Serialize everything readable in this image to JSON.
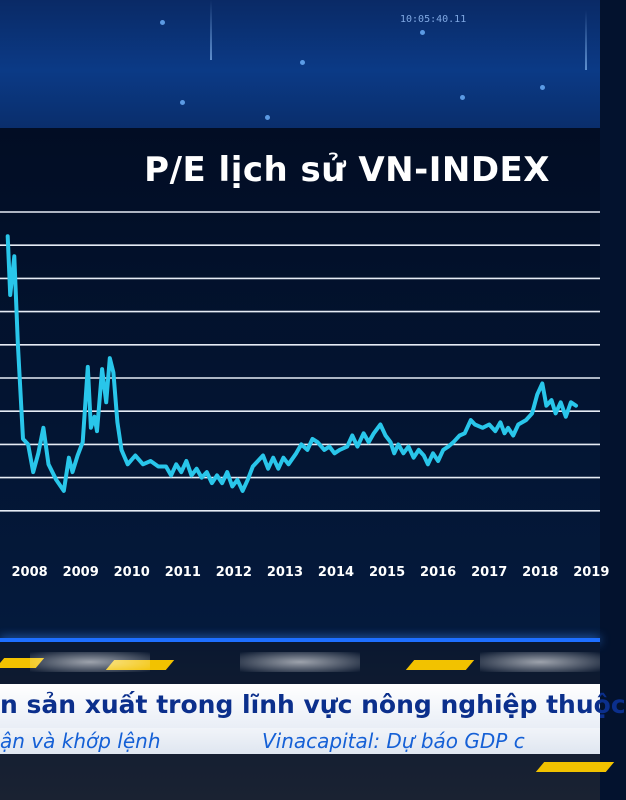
{
  "header": {
    "ticker_code": "10:05:40.11"
  },
  "chart_data": {
    "type": "line",
    "title": "P/E lịch sử VN-INDEX",
    "xlabel": "",
    "ylabel": "",
    "x_tick_labels": [
      "2008",
      "2009",
      "2010",
      "2011",
      "2012",
      "2013",
      "2014",
      "2015",
      "2016",
      "2017",
      "2018",
      "2019"
    ],
    "grid": true,
    "ylim": [
      0,
      30
    ],
    "series": [
      {
        "color": "#29c6ea",
        "points": [
          [
            2007.85,
            27.8
          ],
          [
            2007.9,
            22.5
          ],
          [
            2007.98,
            26.0
          ],
          [
            2008.05,
            18.0
          ],
          [
            2008.15,
            9.5
          ],
          [
            2008.25,
            9.0
          ],
          [
            2008.35,
            6.5
          ],
          [
            2008.45,
            8.2
          ],
          [
            2008.55,
            10.5
          ],
          [
            2008.65,
            7.2
          ],
          [
            2008.8,
            5.8
          ],
          [
            2008.95,
            4.8
          ],
          [
            2009.05,
            7.8
          ],
          [
            2009.12,
            6.5
          ],
          [
            2009.22,
            8.0
          ],
          [
            2009.32,
            9.2
          ],
          [
            2009.42,
            16.0
          ],
          [
            2009.48,
            10.5
          ],
          [
            2009.55,
            11.5
          ],
          [
            2009.6,
            10.2
          ],
          [
            2009.7,
            15.8
          ],
          [
            2009.78,
            12.8
          ],
          [
            2009.85,
            16.8
          ],
          [
            2009.92,
            15.5
          ],
          [
            2010.0,
            11.0
          ],
          [
            2010.08,
            8.5
          ],
          [
            2010.2,
            7.2
          ],
          [
            2010.35,
            8.0
          ],
          [
            2010.5,
            7.2
          ],
          [
            2010.65,
            7.5
          ],
          [
            2010.8,
            7.0
          ],
          [
            2010.95,
            7.0
          ],
          [
            2011.05,
            6.2
          ],
          [
            2011.15,
            7.2
          ],
          [
            2011.25,
            6.5
          ],
          [
            2011.35,
            7.5
          ],
          [
            2011.45,
            6.2
          ],
          [
            2011.55,
            6.8
          ],
          [
            2011.65,
            6.0
          ],
          [
            2011.75,
            6.5
          ],
          [
            2011.85,
            5.5
          ],
          [
            2011.95,
            6.2
          ],
          [
            2012.05,
            5.5
          ],
          [
            2012.15,
            6.5
          ],
          [
            2012.25,
            5.2
          ],
          [
            2012.35,
            5.8
          ],
          [
            2012.45,
            4.8
          ],
          [
            2012.55,
            5.8
          ],
          [
            2012.65,
            7.0
          ],
          [
            2012.75,
            7.5
          ],
          [
            2012.85,
            8.0
          ],
          [
            2012.95,
            6.8
          ],
          [
            2013.05,
            7.8
          ],
          [
            2013.15,
            6.8
          ],
          [
            2013.25,
            7.8
          ],
          [
            2013.35,
            7.2
          ],
          [
            2013.5,
            8.2
          ],
          [
            2013.6,
            9.0
          ],
          [
            2013.72,
            8.5
          ],
          [
            2013.82,
            9.5
          ],
          [
            2013.92,
            9.2
          ],
          [
            2014.05,
            8.5
          ],
          [
            2014.15,
            8.8
          ],
          [
            2014.25,
            8.2
          ],
          [
            2014.35,
            8.5
          ],
          [
            2014.5,
            8.8
          ],
          [
            2014.6,
            9.8
          ],
          [
            2014.7,
            8.8
          ],
          [
            2014.82,
            10.0
          ],
          [
            2014.92,
            9.2
          ],
          [
            2015.02,
            10.0
          ],
          [
            2015.15,
            10.8
          ],
          [
            2015.25,
            9.8
          ],
          [
            2015.35,
            9.2
          ],
          [
            2015.42,
            8.2
          ],
          [
            2015.5,
            9.0
          ],
          [
            2015.6,
            8.2
          ],
          [
            2015.7,
            8.8
          ],
          [
            2015.8,
            7.8
          ],
          [
            2015.9,
            8.5
          ],
          [
            2016.0,
            8.0
          ],
          [
            2016.08,
            7.2
          ],
          [
            2016.18,
            8.2
          ],
          [
            2016.28,
            7.5
          ],
          [
            2016.38,
            8.5
          ],
          [
            2016.48,
            8.8
          ],
          [
            2016.58,
            9.2
          ],
          [
            2016.7,
            9.8
          ],
          [
            2016.8,
            10.0
          ],
          [
            2016.92,
            11.2
          ],
          [
            2017.0,
            10.8
          ],
          [
            2017.15,
            10.5
          ],
          [
            2017.28,
            10.8
          ],
          [
            2017.4,
            10.2
          ],
          [
            2017.5,
            11.0
          ],
          [
            2017.58,
            10.0
          ],
          [
            2017.65,
            10.5
          ],
          [
            2017.75,
            9.8
          ],
          [
            2017.85,
            10.8
          ],
          [
            2018.0,
            11.2
          ],
          [
            2018.12,
            11.8
          ],
          [
            2018.22,
            13.5
          ],
          [
            2018.32,
            14.5
          ],
          [
            2018.4,
            12.5
          ],
          [
            2018.5,
            13.0
          ],
          [
            2018.58,
            11.8
          ],
          [
            2018.68,
            12.8
          ],
          [
            2018.78,
            11.5
          ],
          [
            2018.88,
            12.8
          ],
          [
            2018.98,
            12.5
          ]
        ]
      }
    ]
  },
  "news": {
    "headline": "n sản xuất trong lĩnh vực nông nghiệp thuộc",
    "ticker_left": "ận và khớp lệnh",
    "ticker_right": "Vinacapital: Dự báo GDP c"
  }
}
